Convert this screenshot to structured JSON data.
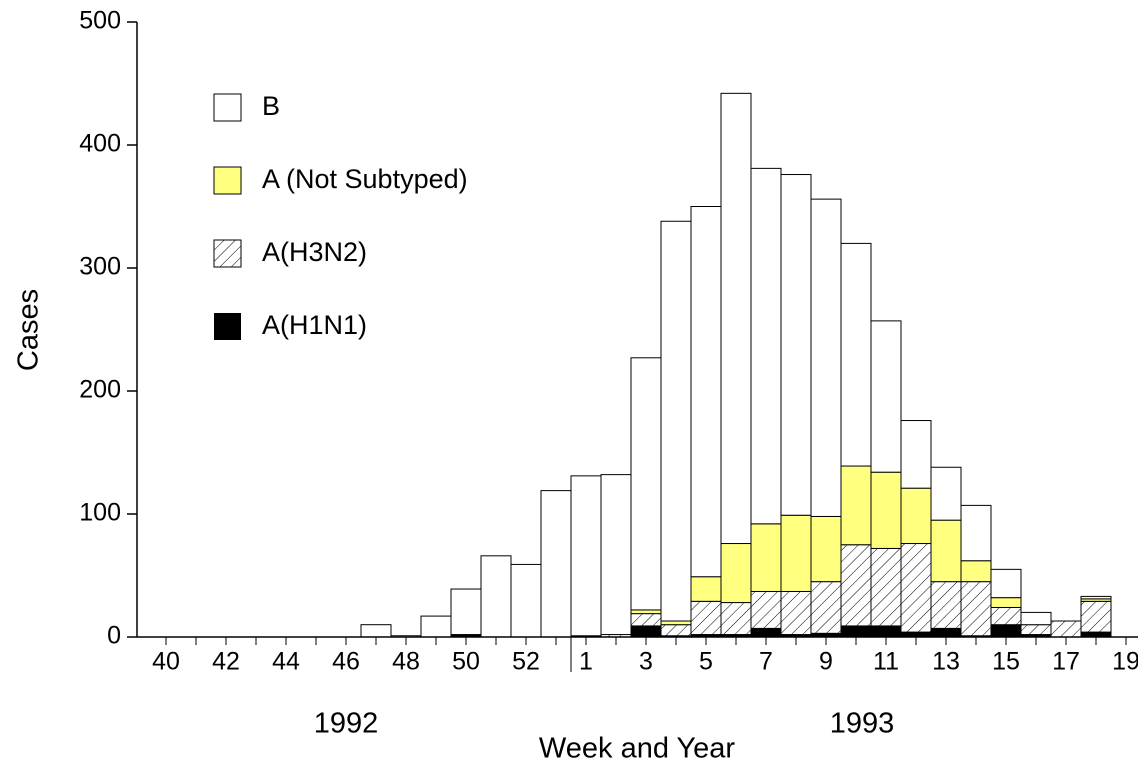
{
  "chart_data": {
    "type": "stacked_bar",
    "x_label": "Week and Year",
    "y_label": "Cases",
    "x_groups": [
      "1992",
      "1993"
    ],
    "categories": [
      "40",
      null,
      "42",
      null,
      "44",
      null,
      "46",
      null,
      "48",
      null,
      "50",
      null,
      "52",
      null,
      "1",
      null,
      "3",
      null,
      "5",
      null,
      "7",
      null,
      "9",
      null,
      "11",
      null,
      "13",
      null,
      "15",
      null,
      "17",
      null,
      "19"
    ],
    "series": [
      {
        "name": "A(H1N1)",
        "color": "#000000",
        "pattern": "solid",
        "values": [
          0,
          0,
          0,
          0,
          0,
          0,
          0,
          0,
          0,
          0,
          2,
          0,
          0,
          0,
          1,
          0,
          9,
          1,
          2,
          2,
          7,
          2,
          3,
          9,
          9,
          4,
          7,
          1,
          10,
          2,
          0,
          4,
          0
        ]
      },
      {
        "name": "A(H3N2)",
        "color": "#ffffff",
        "pattern": "hatch",
        "values": [
          0,
          0,
          0,
          0,
          0,
          0,
          0,
          0,
          0,
          0,
          0,
          0,
          0,
          0,
          0,
          2,
          10,
          9,
          27,
          26,
          30,
          35,
          42,
          66,
          63,
          72,
          38,
          44,
          14,
          8,
          13,
          25,
          0
        ]
      },
      {
        "name": "A (Not Subtyped)",
        "color": "#ffff80",
        "pattern": "solid",
        "values": [
          0,
          0,
          0,
          0,
          0,
          0,
          0,
          0,
          0,
          0,
          0,
          0,
          0,
          0,
          0,
          0,
          3,
          3,
          20,
          48,
          55,
          62,
          53,
          64,
          62,
          45,
          50,
          17,
          8,
          0,
          0,
          2,
          0
        ]
      },
      {
        "name": "B",
        "color": "#ffffff",
        "pattern": "solid",
        "values": [
          0,
          0,
          0,
          0,
          0,
          0,
          0,
          10,
          1,
          17,
          37,
          66,
          59,
          119,
          130,
          130,
          205,
          325,
          301,
          366,
          289,
          277,
          258,
          181,
          123,
          55,
          43,
          45,
          23,
          10,
          0,
          2,
          0
        ]
      }
    ],
    "ylim": [
      0,
      500
    ],
    "yticks": [
      0,
      100,
      200,
      300,
      400,
      500
    ],
    "grid": false,
    "legend": "top-left"
  }
}
